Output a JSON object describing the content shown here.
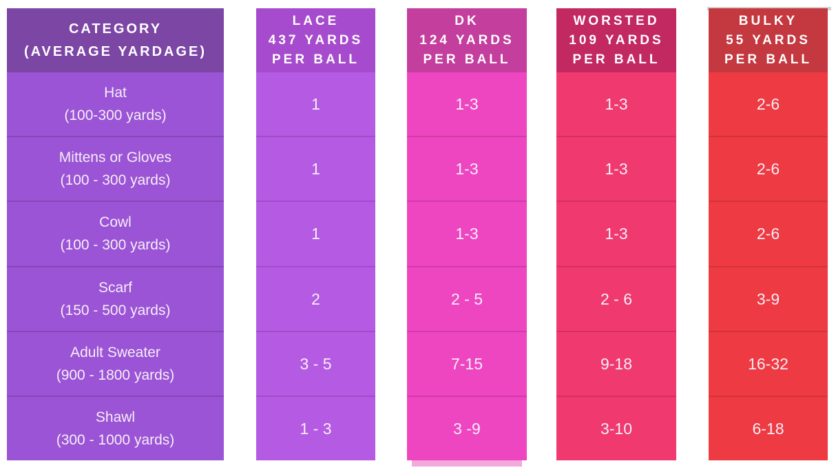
{
  "chart_data": {
    "type": "table",
    "title": "Yarn weight vs. balls needed per project",
    "columns": [
      "CATEGORY (AVERAGE YARDAGE)",
      "LACE 437 YARDS PER BALL",
      "DK 124 YARDS PER BALL",
      "WORSTED 109 YARDS PER BALL",
      "BULKY 55 YARDS PER BALL"
    ],
    "rows": [
      [
        "Hat (100-300 yards)",
        "1",
        "1-3",
        "1-3",
        "2-6"
      ],
      [
        "Mittens or Gloves (100 - 300 yards)",
        "1",
        "1-3",
        "1-3",
        "2-6"
      ],
      [
        "Cowl (100 - 300 yards)",
        "1",
        "1-3",
        "1-3",
        "2-6"
      ],
      [
        "Scarf (150 - 500 yards)",
        "2",
        "2 - 5",
        "2 - 6",
        "3-9"
      ],
      [
        "Adult Sweater (900 - 1800 yards)",
        "3 - 5",
        "7-15",
        "9-18",
        "16-32"
      ],
      [
        "Shawl (300 - 1000 yards)",
        "1 - 3",
        "3 -9",
        "3-10",
        "6-18"
      ]
    ]
  },
  "columns": [
    {
      "id": "category",
      "header_lines": [
        "CATEGORY",
        "(AVERAGE YARDAGE)"
      ],
      "cells": [
        [
          "Hat",
          "(100-300 yards)"
        ],
        [
          "Mittens or Gloves",
          "(100 - 300 yards)"
        ],
        [
          "Cowl",
          "(100 - 300 yards)"
        ],
        [
          "Scarf",
          "(150 - 500 yards)"
        ],
        [
          "Adult Sweater",
          "(900 - 1800 yards)"
        ],
        [
          "Shawl",
          "(300 - 1000 yards)"
        ]
      ],
      "colors": {
        "header_bg": "#7c46a5",
        "body_bg": "#9a54d5",
        "divider": "#8647b8"
      }
    },
    {
      "id": "lace",
      "header_lines": [
        "LACE",
        "437 YARDS",
        "PER BALL"
      ],
      "cells": [
        "1",
        "1",
        "1",
        "2",
        "3 - 5",
        "1 - 3"
      ],
      "colors": {
        "header_bg": "#a64bcd",
        "body_bg": "#b55ae3",
        "divider": "#a14cc9"
      }
    },
    {
      "id": "dk",
      "header_lines": [
        "DK",
        "124 YARDS",
        "PER BALL"
      ],
      "cells": [
        "1-3",
        "1-3",
        "1-3",
        "2 - 5",
        "7-15",
        "3 -9"
      ],
      "colors": {
        "header_bg": "#c33e9d",
        "body_bg": "#ee45c1",
        "divider": "#d13ba6"
      }
    },
    {
      "id": "worsted",
      "header_lines": [
        "WORSTED",
        "109 YARDS",
        "PER BALL"
      ],
      "cells": [
        "1-3",
        "1-3",
        "1-3",
        "2 - 6",
        "9-18",
        "3-10"
      ],
      "colors": {
        "header_bg": "#c22961",
        "body_bg": "#ef396f",
        "divider": "#d62e63"
      }
    },
    {
      "id": "bulky",
      "header_lines": [
        "BULKY",
        "55 YARDS",
        "PER BALL"
      ],
      "cells": [
        "2-6",
        "2-6",
        "2-6",
        "3-9",
        "16-32",
        "6-18"
      ],
      "colors": {
        "header_bg": "#c4393f",
        "body_bg": "#ee3a42",
        "divider": "#d33338"
      }
    }
  ],
  "accents": {
    "top_strip": "#d2d0d0",
    "dk_bottom_strip": "#f2a9dc"
  }
}
